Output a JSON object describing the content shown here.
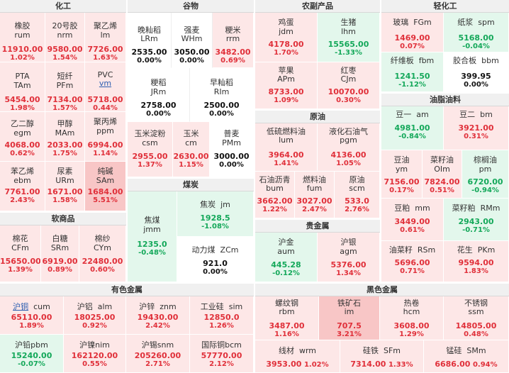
{
  "sections": {
    "chem": "化工",
    "soft": "软商品",
    "nonferrous": "有色金属",
    "grain": "谷物",
    "coal": "煤炭",
    "agri": "农副产品",
    "crude": "原油",
    "precious": "贵金属",
    "ferrous": "黑色金属",
    "light": "轻化工",
    "oil": "油脂油料"
  },
  "t": {
    "xjrum": {
      "name": "橡胶",
      "code": "rum",
      "price": "11910.00",
      "pct": "1.02%"
    },
    "nrm": {
      "name": "20号胶",
      "code": "nrm",
      "price": "9580.00",
      "pct": "1.54%"
    },
    "lm": {
      "name": "聚乙烯",
      "code": "lm",
      "price": "7726.00",
      "pct": "1.63%"
    },
    "tam": {
      "name": "PTA",
      "code": "TAm",
      "price": "5454.00",
      "pct": "1.98%"
    },
    "pfm": {
      "name": "短纤",
      "code": "PFm",
      "price": "7134.00",
      "pct": "1.57%"
    },
    "vm": {
      "name": "PVC",
      "code": "vm",
      "price": "5718.00",
      "pct": "0.44%"
    },
    "egm": {
      "name": "乙二醇",
      "code": "egm",
      "price": "4068.00",
      "pct": "0.62%"
    },
    "mam": {
      "name": "甲醇",
      "code": "MAm",
      "price": "2033.00",
      "pct": "1.75%"
    },
    "ppm": {
      "name": "聚丙烯",
      "code": "ppm",
      "price": "6994.00",
      "pct": "1.14%"
    },
    "ebm": {
      "name": "苯乙烯",
      "code": "ebm",
      "price": "7761.00",
      "pct": "2.43%"
    },
    "urm": {
      "name": "尿素",
      "code": "URm",
      "price": "1671.00",
      "pct": "1.58%"
    },
    "sam": {
      "name": "纯碱",
      "code": "SAm",
      "price": "1684.00",
      "pct": "5.51%"
    },
    "cfm": {
      "name": "棉花",
      "code": "CFm",
      "price": "15650.00",
      "pct": "1.39%"
    },
    "srm": {
      "name": "白糖",
      "code": "SRm",
      "price": "6919.00",
      "pct": "0.89%"
    },
    "cym": {
      "name": "棉纱",
      "code": "CYm",
      "price": "22480.00",
      "pct": "0.60%"
    },
    "lrm": {
      "name": "晚籼稻",
      "code": "LRm",
      "price": "2535.00",
      "pct": "0.00%"
    },
    "whm": {
      "name": "强麦",
      "code": "WHm",
      "price": "3050.00",
      "pct": "0.00%"
    },
    "rrm": {
      "name": "粳米",
      "code": "rrm",
      "price": "3482.00",
      "pct": "0.69%"
    },
    "jrm": {
      "name": "粳稻",
      "code": "JRm",
      "price": "2758.00",
      "pct": "0.00%"
    },
    "rim": {
      "name": "早籼稻",
      "code": "RIm",
      "price": "2500.00",
      "pct": "0.00%"
    },
    "csm": {
      "name": "玉米淀粉",
      "code": "csm",
      "price": "2955.00",
      "pct": "1.37%"
    },
    "cm": {
      "name": "玉米",
      "code": "cm",
      "price": "2630.00",
      "pct": "1.15%"
    },
    "pmm": {
      "name": "普麦",
      "code": "PMm",
      "price": "3000.00",
      "pct": "0.00%"
    },
    "jmm": {
      "name": "焦煤",
      "code": "jmm",
      "price": "1235.0",
      "pct": "-0.48%"
    },
    "jm": {
      "name": "焦炭",
      "code": "jm",
      "price": "1928.5",
      "pct": "-1.08%"
    },
    "zcm": {
      "name": "动力煤",
      "code": "ZCm",
      "price": "921.0",
      "pct": "0.00%"
    },
    "jdm": {
      "name": "鸡蛋",
      "code": "jdm",
      "price": "4178.00",
      "pct": "1.70%"
    },
    "lhm": {
      "name": "生猪",
      "code": "lhm",
      "price": "15565.00",
      "pct": "-1.33%"
    },
    "apm": {
      "name": "苹果",
      "code": "APm",
      "price": "8733.00",
      "pct": "1.09%"
    },
    "cjm": {
      "name": "红枣",
      "code": "CJm",
      "price": "10070.00",
      "pct": "0.30%"
    },
    "lum": {
      "name": "低硫燃料油",
      "code": "lum",
      "price": "3964.00",
      "pct": "1.41%"
    },
    "pgm": {
      "name": "液化石油气",
      "code": "pgm",
      "price": "4136.00",
      "pct": "1.05%"
    },
    "bum": {
      "name": "石油沥青",
      "code": "bum",
      "price": "3662.00",
      "pct": "1.22%"
    },
    "fum": {
      "name": "燃料油",
      "code": "fum",
      "price": "3027.00",
      "pct": "2.47%"
    },
    "scm": {
      "name": "原油",
      "code": "scm",
      "price": "533.0",
      "pct": "2.76%"
    },
    "aum": {
      "name": "沪金",
      "code": "aum",
      "price": "445.28",
      "pct": "-0.12%"
    },
    "agm": {
      "name": "沪银",
      "code": "agm",
      "price": "5376.00",
      "pct": "1.34%"
    },
    "fgm": {
      "name": "玻璃",
      "code": "FGm",
      "price": "1469.00",
      "pct": "0.07%"
    },
    "spm": {
      "name": "纸浆",
      "code": "spm",
      "price": "5168.00",
      "pct": "-0.04%"
    },
    "fbm": {
      "name": "纤维板",
      "code": "fbm",
      "price": "1241.50",
      "pct": "-1.12%"
    },
    "bbm": {
      "name": "胶合板",
      "code": "bbm",
      "price": "399.95",
      "pct": "0.00%"
    },
    "am": {
      "name": "豆一",
      "code": "am",
      "price": "4981.00",
      "pct": "-0.84%"
    },
    "bm": {
      "name": "豆二",
      "code": "bm",
      "price": "3921.00",
      "pct": "0.31%"
    },
    "ym": {
      "name": "豆油",
      "code": "ym",
      "price": "7156.00",
      "pct": "0.17%"
    },
    "oim": {
      "name": "菜籽油",
      "code": "OIm",
      "price": "7824.00",
      "pct": "0.51%"
    },
    "pm": {
      "name": "棕榈油",
      "code": "pm",
      "price": "6720.00",
      "pct": "-0.94%"
    },
    "mm": {
      "name": "豆粕",
      "code": "mm",
      "price": "3449.00",
      "pct": "0.61%"
    },
    "rmm": {
      "name": "菜籽粕",
      "code": "RMm",
      "price": "2943.00",
      "pct": "-0.71%"
    },
    "rsm": {
      "name": "油菜籽",
      "code": "RSm",
      "price": "5696.00",
      "pct": "0.71%"
    },
    "pkm": {
      "name": "花生",
      "code": "PKm",
      "price": "9594.00",
      "pct": "1.83%"
    },
    "cum": {
      "name": "沪铜",
      "code": "cum",
      "price": "65110.00",
      "pct": "1.89%"
    },
    "alm": {
      "name": "沪铝",
      "code": "alm",
      "price": "18025.00",
      "pct": "0.92%"
    },
    "znm": {
      "name": "沪锌",
      "code": "znm",
      "price": "19430.00",
      "pct": "2.42%"
    },
    "sim": {
      "name": "工业硅",
      "code": "sim",
      "price": "12850.0",
      "pct": "1.26%"
    },
    "pbm": {
      "name": "沪铅",
      "code": "pbm",
      "price": "15240.00",
      "pct": "-0.07%"
    },
    "nim": {
      "name": "沪镍",
      "code": "nim",
      "price": "162120.00",
      "pct": "0.55%"
    },
    "snm": {
      "name": "沪锡",
      "code": "snm",
      "price": "205260.00",
      "pct": "2.71%"
    },
    "bcm": {
      "name": "国际铜",
      "code": "bcm",
      "price": "57770.00",
      "pct": "2.12%"
    },
    "rbm": {
      "name": "螺纹钢",
      "code": "rbm",
      "price": "3487.00",
      "pct": "1.16%"
    },
    "im": {
      "name": "铁矿石",
      "code": "im",
      "price": "707.5",
      "pct": "3.21%"
    },
    "hcm": {
      "name": "热卷",
      "code": "hcm",
      "price": "3608.00",
      "pct": "1.29%"
    },
    "ssm": {
      "name": "不锈钢",
      "code": "ssm",
      "price": "14805.00",
      "pct": "0.48%"
    },
    "wrm": {
      "name": "线材",
      "code": "wrm",
      "price": "3953.00",
      "pct": "1.02%"
    },
    "sfm": {
      "name": "硅铁",
      "code": "SFm",
      "price": "7314.00",
      "pct": "1.33%"
    },
    "smm": {
      "name": "锰硅",
      "code": "SMm",
      "price": "6686.00",
      "pct": "0.94%"
    }
  }
}
